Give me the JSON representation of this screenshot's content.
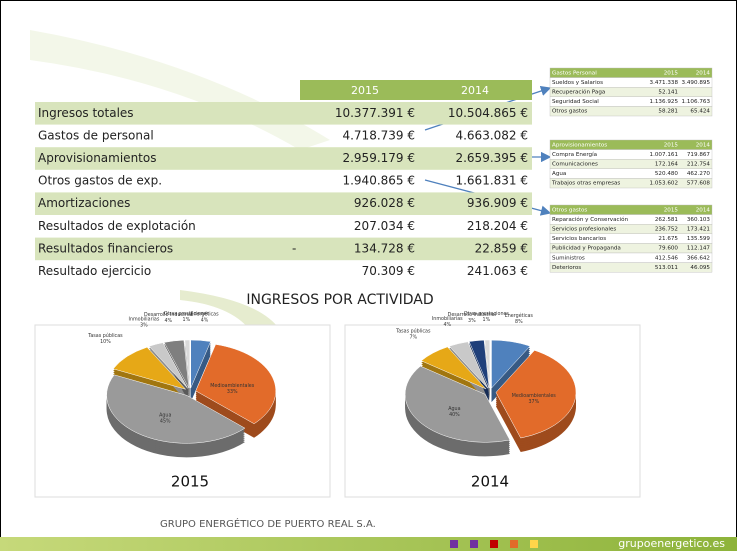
{
  "main_table": {
    "years": [
      "2015",
      "2014"
    ],
    "rows": [
      {
        "label": "Ingresos totales",
        "values": [
          "10.377.391 €",
          "10.504.865 €"
        ]
      },
      {
        "label": "Gastos de personal",
        "values": [
          "4.718.739 €",
          "4.663.082 €"
        ]
      },
      {
        "label": "Aprovisionamientos",
        "values": [
          "2.959.179 €",
          "2.659.395 €"
        ]
      },
      {
        "label": "Otros gastos de exp.",
        "values": [
          "1.940.865 €",
          "1.661.831 €"
        ]
      },
      {
        "label": "Amortizaciones",
        "values": [
          "926.028 €",
          "936.909 €"
        ]
      },
      {
        "label": "Resultados de explotación",
        "values": [
          "207.034 €",
          "218.204 €"
        ]
      },
      {
        "label": "Resultados financieros",
        "sign": "-",
        "values": [
          "134.728 €",
          "22.859 €"
        ]
      },
      {
        "label": "Resultado ejercicio",
        "values": [
          "70.309 €",
          "241.063 €"
        ]
      }
    ]
  },
  "side_tables": [
    {
      "header": [
        "Gastos Personal",
        "2015",
        "2014"
      ],
      "rows": [
        [
          "Sueldos y Salarios",
          "3.471.338",
          "3.490.895"
        ],
        [
          "Recuperación Paga",
          "52.141"
        ],
        [
          "Seguridad Social",
          "1.136.925",
          "1.106.763"
        ],
        [
          "Otros gastos",
          "58.281",
          "65.424"
        ]
      ]
    },
    {
      "header": [
        "Aprovisionamientos",
        "2015",
        "2014"
      ],
      "rows": [
        [
          "Compra Energía",
          "1.007.161",
          "719.867"
        ],
        [
          "Comunicaciones",
          "172.164",
          "212.754"
        ],
        [
          "Agua",
          "520.480",
          "462.270"
        ],
        [
          "Trabajos otras empresas",
          "1.053.602",
          "577.608"
        ]
      ]
    },
    {
      "header": [
        "Otros gastos",
        "2015",
        "2014"
      ],
      "rows": [
        [
          "Reparación y Conservación",
          "262.581",
          "360.103"
        ],
        [
          "Servicios profesionales",
          "236.752",
          "173.421"
        ],
        [
          "Servicios bancarios",
          "21.675",
          "135.599"
        ],
        [
          "Publicidad y Propaganda",
          "79.600",
          "112.147"
        ],
        [
          "Suministros",
          "412.546",
          "366.642"
        ],
        [
          "Deterioros",
          "513.011",
          "46.095"
        ]
      ]
    }
  ],
  "section_title": "INGRESOS POR ACTIVIDAD",
  "chart_data": [
    {
      "type": "pie",
      "title": "2015",
      "categories": [
        "Energéticas",
        "Medioambientales",
        "Agua",
        "Tasas públicas",
        "Inmobiliarias",
        "Desarrollo Industrial",
        "Otras prestaciones"
      ],
      "values": [
        4,
        33,
        45,
        10,
        3,
        4,
        1
      ],
      "value_labels": [
        "4%",
        "33%",
        "45%",
        "10%",
        "3%",
        "4%",
        "1%"
      ],
      "colors": [
        "#4f81bd",
        "#e26b2a",
        "#9a9a9a",
        "#e6a817",
        "#c9c9c9",
        "#7f7f7f",
        "#d9d9d9"
      ]
    },
    {
      "type": "pie",
      "title": "2014",
      "categories": [
        "Energéticas",
        "Medioambientales",
        "Agua",
        "Tasas públicas",
        "Inmobiliarias",
        "Desarrollo Industrial",
        "Otras prestaciones"
      ],
      "values": [
        8,
        37,
        40,
        7,
        4,
        3,
        1
      ],
      "value_labels": [
        "8%",
        "37%",
        "40%",
        "7%",
        "4%",
        "3%",
        "1%"
      ],
      "colors": [
        "#4f81bd",
        "#e26b2a",
        "#9a9a9a",
        "#e6a817",
        "#c9c9c9",
        "#1f3f7a",
        "#d9d9d9"
      ]
    }
  ],
  "footer": {
    "company": "GRUPO ENERGÉTICO DE PUERTO REAL S.A.",
    "website": "grupoenergetico.es"
  }
}
